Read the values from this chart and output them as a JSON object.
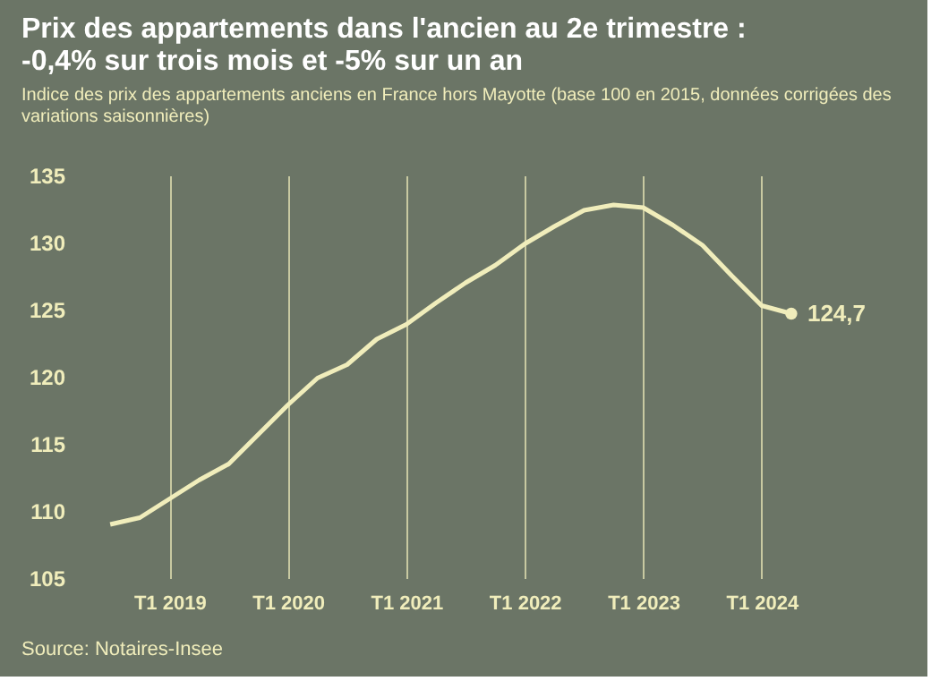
{
  "chart_data": {
    "type": "line",
    "title": "Prix des appartements dans l'ancien au 2e trimestre : -0,4% sur trois mois et -5% sur un an",
    "subtitle": "Indice des prix des appartements anciens en France hors Mayotte (base 100 en 2015, données corrigées des variations saisonnières)",
    "categories": [
      null,
      null,
      "T1 2019",
      null,
      null,
      null,
      "T1 2020",
      null,
      null,
      null,
      "T1 2021",
      null,
      null,
      null,
      "T1 2022",
      null,
      null,
      null,
      "T1 2023",
      null,
      null,
      null,
      "T1 2024",
      null
    ],
    "series": [
      {
        "color": "#f0edbb",
        "values": [
          109.0,
          109.5,
          110.9,
          112.3,
          113.5,
          115.7,
          117.9,
          119.9,
          120.9,
          122.8,
          123.9,
          125.5,
          127.0,
          128.3,
          129.9,
          131.2,
          132.4,
          132.8,
          132.6,
          131.3,
          129.8,
          127.5,
          125.3,
          124.7
        ],
        "value_labels": [
          null,
          null,
          null,
          null,
          null,
          null,
          null,
          null,
          null,
          null,
          null,
          null,
          null,
          null,
          null,
          null,
          null,
          null,
          null,
          null,
          null,
          null,
          null,
          "124,7"
        ]
      }
    ],
    "ylim": [
      105,
      135
    ],
    "yticks": [
      105,
      110,
      115,
      120,
      125,
      130,
      135
    ],
    "grid": "x",
    "marker": "none",
    "line_style": "solid",
    "annotations": [
      "Source: Notaires-Insee"
    ]
  }
}
